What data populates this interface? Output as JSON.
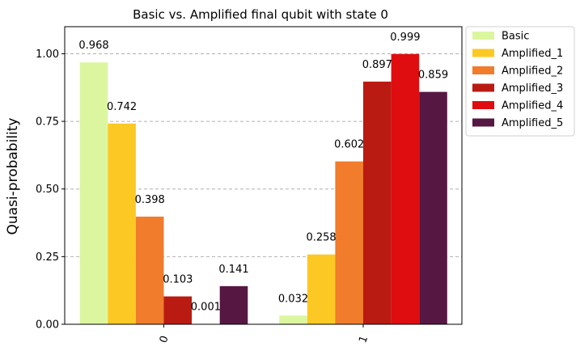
{
  "chart_data": {
    "type": "bar",
    "title": "Basic vs. Amplified final qubit with state 0",
    "xlabel": "",
    "ylabel": "Quasi-probability",
    "categories": [
      "0",
      "1"
    ],
    "ylim": [
      0,
      1.1
    ],
    "yticks": [
      "0.00",
      "0.25",
      "0.50",
      "0.75",
      "1.00"
    ],
    "grid": "y-dashed",
    "legend_position": "outside-top-right",
    "series": [
      {
        "name": "Basic",
        "color": "#dcf6a0",
        "values": [
          0.968,
          0.032
        ],
        "labels": [
          "0.968",
          "0.032"
        ]
      },
      {
        "name": "Amplified_1",
        "color": "#fcc924",
        "values": [
          0.742,
          0.258
        ],
        "labels": [
          "0.742",
          "0.258"
        ]
      },
      {
        "name": "Amplified_2",
        "color": "#f07c2c",
        "values": [
          0.398,
          0.602
        ],
        "labels": [
          "0.398",
          "0.602"
        ]
      },
      {
        "name": "Amplified_3",
        "color": "#b91b12",
        "values": [
          0.103,
          0.897
        ],
        "labels": [
          "0.103",
          "0.897"
        ]
      },
      {
        "name": "Amplified_4",
        "color": "#e00d10",
        "values": [
          0.001,
          0.999
        ],
        "labels": [
          "0.001",
          "0.999"
        ]
      },
      {
        "name": "Amplified_5",
        "color": "#561743",
        "values": [
          0.141,
          0.859
        ],
        "labels": [
          "0.141",
          "0.859"
        ]
      }
    ]
  }
}
